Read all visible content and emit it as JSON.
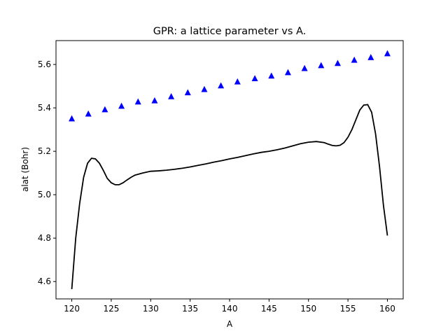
{
  "chart_data": {
    "type": "line",
    "title": "GPR: a lattice parameter vs A.",
    "xlabel": "A",
    "ylabel": "alat (Bohr)",
    "xlim": [
      118,
      162
    ],
    "ylim": [
      4.52,
      5.71
    ],
    "xticks": [
      120,
      125,
      130,
      135,
      140,
      145,
      150,
      155,
      160
    ],
    "yticks": [
      4.6,
      4.8,
      5.0,
      5.2,
      5.4,
      5.6
    ],
    "xtick_labels": [
      "120",
      "125",
      "130",
      "135",
      "140",
      "145",
      "150",
      "155",
      "160"
    ],
    "ytick_labels": [
      "4.6",
      "4.8",
      "5.0",
      "5.2",
      "5.4",
      "5.6"
    ],
    "grid": false,
    "series": [
      {
        "kind": "scatter",
        "marker": "triangle",
        "color": "#0000ff",
        "x": [
          120.0,
          122.1,
          124.2,
          126.3,
          128.4,
          130.5,
          132.6,
          134.7,
          136.8,
          138.9,
          141.0,
          143.2,
          145.3,
          147.4,
          149.5,
          151.6,
          153.7,
          155.8,
          157.9,
          160.0
        ],
        "y": [
          5.35,
          5.372,
          5.392,
          5.408,
          5.428,
          5.433,
          5.452,
          5.47,
          5.485,
          5.502,
          5.52,
          5.535,
          5.547,
          5.563,
          5.582,
          5.595,
          5.605,
          5.62,
          5.632,
          5.65
        ]
      },
      {
        "kind": "line",
        "color": "#000000",
        "x": [
          120.0,
          120.5,
          121.0,
          121.5,
          122.0,
          122.5,
          123.0,
          123.5,
          124.0,
          124.5,
          125.0,
          125.5,
          126.0,
          126.5,
          127.0,
          127.5,
          128.0,
          129.0,
          130.0,
          131.0,
          132.0,
          133.0,
          134.0,
          135.0,
          136.0,
          137.0,
          138.0,
          139.0,
          140.0,
          141.0,
          142.0,
          143.0,
          144.0,
          145.0,
          146.0,
          147.0,
          148.0,
          149.0,
          150.0,
          151.0,
          152.0,
          152.5,
          153.0,
          153.5,
          154.0,
          154.5,
          155.0,
          155.5,
          156.0,
          156.5,
          157.0,
          157.5,
          158.0,
          158.5,
          159.0,
          159.5,
          160.0
        ],
        "y": [
          4.565,
          4.8,
          4.96,
          5.08,
          5.145,
          5.168,
          5.165,
          5.145,
          5.112,
          5.075,
          5.055,
          5.046,
          5.046,
          5.055,
          5.068,
          5.08,
          5.09,
          5.1,
          5.108,
          5.11,
          5.113,
          5.117,
          5.122,
          5.128,
          5.135,
          5.142,
          5.15,
          5.157,
          5.165,
          5.172,
          5.18,
          5.188,
          5.195,
          5.2,
          5.207,
          5.215,
          5.225,
          5.235,
          5.242,
          5.245,
          5.24,
          5.233,
          5.227,
          5.225,
          5.228,
          5.24,
          5.265,
          5.3,
          5.345,
          5.39,
          5.413,
          5.415,
          5.38,
          5.28,
          5.13,
          4.95,
          4.812
        ]
      }
    ]
  }
}
